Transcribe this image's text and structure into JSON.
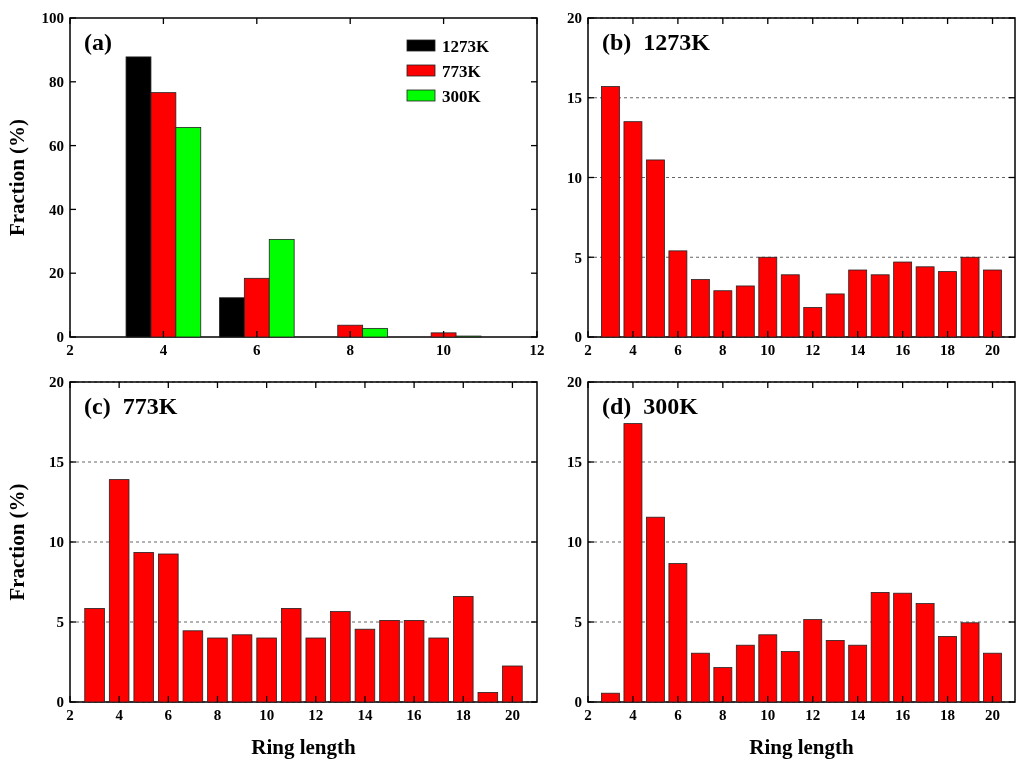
{
  "chart_data": [
    {
      "type": "bar",
      "title": "(a)",
      "ylabel": "Fraction (%)",
      "x": [
        4,
        6,
        8,
        10
      ],
      "xlim": [
        2,
        12
      ],
      "xticks": [
        2,
        4,
        6,
        8,
        10,
        12
      ],
      "ylim": [
        0,
        100
      ],
      "yticks": [
        0,
        20,
        40,
        60,
        80,
        100
      ],
      "legend": "top right",
      "series": [
        {
          "name": "1273K",
          "color": "#000000",
          "values": [
            87.8,
            12.3,
            0,
            0
          ]
        },
        {
          "name": "773K",
          "color": "#ff0000",
          "values": [
            76.6,
            18.4,
            3.7,
            1.3
          ]
        },
        {
          "name": "300K",
          "color": "#00ff00",
          "values": [
            65.7,
            30.6,
            2.7,
            0.3
          ]
        }
      ]
    },
    {
      "type": "bar",
      "title": "(b)  1273K",
      "x": [
        3,
        4,
        5,
        6,
        7,
        8,
        9,
        10,
        11,
        12,
        13,
        14,
        15,
        16,
        17,
        18,
        19,
        20
      ],
      "xlim": [
        2,
        21
      ],
      "xticks": [
        2,
        4,
        6,
        8,
        10,
        12,
        14,
        16,
        18,
        20
      ],
      "ylim": [
        0,
        20
      ],
      "yticks": [
        0,
        5,
        10,
        15,
        20
      ],
      "grid": "y",
      "series": [
        {
          "color": "#ff0000",
          "values": [
            15.7,
            13.5,
            11.1,
            5.4,
            3.6,
            2.9,
            3.2,
            5.0,
            3.9,
            1.85,
            2.7,
            4.2,
            3.9,
            4.7,
            4.4,
            4.1,
            5.0,
            4.2
          ]
        }
      ]
    },
    {
      "type": "bar",
      "title": "(c)  773K",
      "ylabel": "Fraction (%)",
      "xlabel": "Ring length",
      "x": [
        3,
        4,
        5,
        6,
        7,
        8,
        9,
        10,
        11,
        12,
        13,
        14,
        15,
        16,
        17,
        18,
        19,
        20
      ],
      "xlim": [
        2,
        21
      ],
      "xticks": [
        2,
        4,
        6,
        8,
        10,
        12,
        14,
        16,
        18,
        20
      ],
      "ylim": [
        0,
        20
      ],
      "yticks": [
        0,
        5,
        10,
        15,
        20
      ],
      "grid": "y",
      "series": [
        {
          "color": "#ff0000",
          "values": [
            5.85,
            13.9,
            9.35,
            9.25,
            4.45,
            4.0,
            4.2,
            4.0,
            5.85,
            4.0,
            5.65,
            4.55,
            5.1,
            5.1,
            4.0,
            6.6,
            0.6,
            2.25
          ]
        }
      ]
    },
    {
      "type": "bar",
      "title": "(d)  300K",
      "xlabel": "Ring length",
      "x": [
        3,
        4,
        5,
        6,
        7,
        8,
        9,
        10,
        11,
        12,
        13,
        14,
        15,
        16,
        17,
        18,
        19,
        20
      ],
      "xlim": [
        2,
        21
      ],
      "xticks": [
        2,
        4,
        6,
        8,
        10,
        12,
        14,
        16,
        18,
        20
      ],
      "ylim": [
        0,
        20
      ],
      "yticks": [
        0,
        5,
        10,
        15,
        20
      ],
      "grid": "y",
      "series": [
        {
          "color": "#ff0000",
          "values": [
            0.55,
            17.4,
            11.55,
            8.65,
            3.05,
            2.15,
            3.55,
            4.2,
            3.15,
            5.15,
            3.85,
            3.55,
            6.85,
            6.8,
            6.15,
            4.1,
            4.95,
            3.05
          ]
        }
      ]
    }
  ]
}
